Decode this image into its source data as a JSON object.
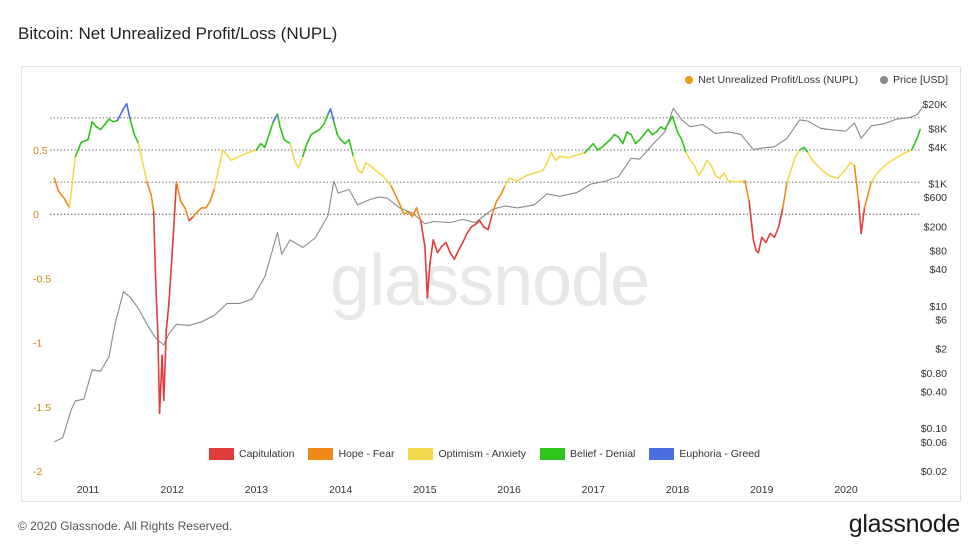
{
  "header": {
    "title": "Bitcoin: Net Unrealized Profit/Loss (NUPL)"
  },
  "footer": {
    "copyright": "© 2020 Glassnode. All Rights Reserved.",
    "logo_text": "glassnode"
  },
  "watermark": "glassnode",
  "legend_top": [
    {
      "label": "Net Unrealized Profit/Loss (NUPL)",
      "color": "#f09a1a"
    },
    {
      "label": "Price [USD]",
      "color": "#888888"
    }
  ],
  "legend_bottom": [
    {
      "label": "Capitulation",
      "color": "#e03c3c"
    },
    {
      "label": "Hope - Fear",
      "color": "#f08a1a"
    },
    {
      "label": "Optimism - Anxiety",
      "color": "#f2d94e"
    },
    {
      "label": "Belief - Denial",
      "color": "#2fc41c"
    },
    {
      "label": "Euphoria - Greed",
      "color": "#4a6ee0"
    }
  ],
  "chart_data": {
    "type": "line",
    "title": "Bitcoin: Net Unrealized Profit/Loss (NUPL)",
    "left_axis": {
      "ticks": [
        "0.5",
        "0",
        "-0.5",
        "-1",
        "-1.5",
        "-2"
      ],
      "values": [
        0.5,
        0,
        -0.5,
        -1,
        -1.5,
        -2
      ],
      "range": [
        -2,
        1
      ]
    },
    "right_axis": {
      "scale": "log",
      "ticks": [
        "$20K",
        "$8K",
        "$4K",
        "$1K",
        "$600",
        "$200",
        "$80",
        "$40",
        "$10",
        "$6",
        "$2",
        "$0.80",
        "$0.40",
        "$0.10",
        "$0.06",
        "$0.02"
      ],
      "values": [
        20000,
        8000,
        4000,
        1000,
        600,
        200,
        80,
        40,
        10,
        6,
        2,
        0.8,
        0.4,
        0.1,
        0.06,
        0.02
      ]
    },
    "x_axis": {
      "ticks": [
        "2011",
        "2012",
        "2013",
        "2014",
        "2015",
        "2016",
        "2017",
        "2018",
        "2019",
        "2020"
      ]
    },
    "zone_lines": [
      0.75,
      0.5,
      0.25,
      0
    ],
    "nupl": {
      "name": "Net Unrealized Profit/Loss (NUPL)",
      "points": [
        [
          2010.6,
          0.28
        ],
        [
          2010.65,
          0.18
        ],
        [
          2010.72,
          0.12
        ],
        [
          2010.78,
          0.05
        ],
        [
          2010.85,
          0.45
        ],
        [
          2010.92,
          0.56
        ],
        [
          2011.0,
          0.58
        ],
        [
          2011.05,
          0.72
        ],
        [
          2011.1,
          0.68
        ],
        [
          2011.15,
          0.66
        ],
        [
          2011.2,
          0.7
        ],
        [
          2011.25,
          0.74
        ],
        [
          2011.3,
          0.72
        ],
        [
          2011.35,
          0.73
        ],
        [
          2011.42,
          0.82
        ],
        [
          2011.46,
          0.86
        ],
        [
          2011.5,
          0.74
        ],
        [
          2011.55,
          0.62
        ],
        [
          2011.6,
          0.55
        ],
        [
          2011.65,
          0.4
        ],
        [
          2011.7,
          0.25
        ],
        [
          2011.75,
          0.15
        ],
        [
          2011.78,
          0.02
        ],
        [
          2011.8,
          -0.45
        ],
        [
          2011.83,
          -0.95
        ],
        [
          2011.85,
          -1.55
        ],
        [
          2011.88,
          -1.1
        ],
        [
          2011.9,
          -1.45
        ],
        [
          2011.93,
          -0.9
        ],
        [
          2011.96,
          -0.7
        ],
        [
          2012.0,
          -0.3
        ],
        [
          2012.05,
          0.25
        ],
        [
          2012.1,
          0.1
        ],
        [
          2012.15,
          0.05
        ],
        [
          2012.2,
          -0.05
        ],
        [
          2012.25,
          -0.02
        ],
        [
          2012.3,
          0.02
        ],
        [
          2012.35,
          0.05
        ],
        [
          2012.4,
          0.05
        ],
        [
          2012.45,
          0.1
        ],
        [
          2012.5,
          0.2
        ],
        [
          2012.55,
          0.35
        ],
        [
          2012.6,
          0.5
        ],
        [
          2012.7,
          0.42
        ],
        [
          2012.8,
          0.45
        ],
        [
          2012.9,
          0.48
        ],
        [
          2013.0,
          0.5
        ],
        [
          2013.05,
          0.55
        ],
        [
          2013.1,
          0.52
        ],
        [
          2013.15,
          0.62
        ],
        [
          2013.2,
          0.72
        ],
        [
          2013.25,
          0.78
        ],
        [
          2013.28,
          0.68
        ],
        [
          2013.33,
          0.58
        ],
        [
          2013.4,
          0.55
        ],
        [
          2013.45,
          0.42
        ],
        [
          2013.5,
          0.36
        ],
        [
          2013.55,
          0.45
        ],
        [
          2013.6,
          0.55
        ],
        [
          2013.65,
          0.62
        ],
        [
          2013.7,
          0.64
        ],
        [
          2013.75,
          0.66
        ],
        [
          2013.8,
          0.7
        ],
        [
          2013.85,
          0.78
        ],
        [
          2013.88,
          0.82
        ],
        [
          2013.92,
          0.72
        ],
        [
          2013.96,
          0.62
        ],
        [
          2014.0,
          0.58
        ],
        [
          2014.05,
          0.55
        ],
        [
          2014.1,
          0.58
        ],
        [
          2014.15,
          0.45
        ],
        [
          2014.2,
          0.35
        ],
        [
          2014.25,
          0.32
        ],
        [
          2014.3,
          0.4
        ],
        [
          2014.35,
          0.38
        ],
        [
          2014.4,
          0.35
        ],
        [
          2014.5,
          0.3
        ],
        [
          2014.6,
          0.22
        ],
        [
          2014.65,
          0.15
        ],
        [
          2014.7,
          0.08
        ],
        [
          2014.75,
          0.0
        ],
        [
          2014.8,
          0.02
        ],
        [
          2014.85,
          -0.02
        ],
        [
          2014.9,
          0.05
        ],
        [
          2014.95,
          -0.05
        ],
        [
          2015.0,
          -0.25
        ],
        [
          2015.03,
          -0.65
        ],
        [
          2015.06,
          -0.38
        ],
        [
          2015.1,
          -0.2
        ],
        [
          2015.15,
          -0.3
        ],
        [
          2015.2,
          -0.25
        ],
        [
          2015.25,
          -0.22
        ],
        [
          2015.3,
          -0.3
        ],
        [
          2015.35,
          -0.35
        ],
        [
          2015.4,
          -0.28
        ],
        [
          2015.45,
          -0.22
        ],
        [
          2015.5,
          -0.15
        ],
        [
          2015.55,
          -0.1
        ],
        [
          2015.6,
          -0.08
        ],
        [
          2015.65,
          -0.05
        ],
        [
          2015.7,
          -0.1
        ],
        [
          2015.75,
          -0.12
        ],
        [
          2015.8,
          0.0
        ],
        [
          2015.85,
          0.1
        ],
        [
          2015.9,
          0.15
        ],
        [
          2015.95,
          0.22
        ],
        [
          2016.0,
          0.28
        ],
        [
          2016.1,
          0.26
        ],
        [
          2016.2,
          0.3
        ],
        [
          2016.3,
          0.32
        ],
        [
          2016.4,
          0.34
        ],
        [
          2016.45,
          0.4
        ],
        [
          2016.5,
          0.48
        ],
        [
          2016.55,
          0.42
        ],
        [
          2016.6,
          0.45
        ],
        [
          2016.7,
          0.44
        ],
        [
          2016.8,
          0.46
        ],
        [
          2016.9,
          0.48
        ],
        [
          2017.0,
          0.55
        ],
        [
          2017.05,
          0.5
        ],
        [
          2017.1,
          0.52
        ],
        [
          2017.15,
          0.55
        ],
        [
          2017.2,
          0.58
        ],
        [
          2017.25,
          0.62
        ],
        [
          2017.3,
          0.6
        ],
        [
          2017.35,
          0.55
        ],
        [
          2017.4,
          0.64
        ],
        [
          2017.45,
          0.62
        ],
        [
          2017.5,
          0.55
        ],
        [
          2017.55,
          0.58
        ],
        [
          2017.6,
          0.62
        ],
        [
          2017.65,
          0.66
        ],
        [
          2017.7,
          0.62
        ],
        [
          2017.75,
          0.64
        ],
        [
          2017.8,
          0.68
        ],
        [
          2017.85,
          0.66
        ],
        [
          2017.9,
          0.72
        ],
        [
          2017.94,
          0.76
        ],
        [
          2017.97,
          0.7
        ],
        [
          2018.0,
          0.64
        ],
        [
          2018.05,
          0.58
        ],
        [
          2018.1,
          0.48
        ],
        [
          2018.15,
          0.42
        ],
        [
          2018.2,
          0.38
        ],
        [
          2018.25,
          0.3
        ],
        [
          2018.3,
          0.35
        ],
        [
          2018.35,
          0.42
        ],
        [
          2018.4,
          0.38
        ],
        [
          2018.45,
          0.3
        ],
        [
          2018.5,
          0.28
        ],
        [
          2018.55,
          0.32
        ],
        [
          2018.6,
          0.26
        ],
        [
          2018.7,
          0.25
        ],
        [
          2018.8,
          0.26
        ],
        [
          2018.85,
          0.1
        ],
        [
          2018.9,
          -0.2
        ],
        [
          2018.93,
          -0.28
        ],
        [
          2018.96,
          -0.3
        ],
        [
          2019.0,
          -0.18
        ],
        [
          2019.05,
          -0.22
        ],
        [
          2019.1,
          -0.15
        ],
        [
          2019.15,
          -0.18
        ],
        [
          2019.2,
          -0.1
        ],
        [
          2019.25,
          0.05
        ],
        [
          2019.3,
          0.25
        ],
        [
          2019.35,
          0.35
        ],
        [
          2019.4,
          0.45
        ],
        [
          2019.45,
          0.5
        ],
        [
          2019.5,
          0.52
        ],
        [
          2019.55,
          0.48
        ],
        [
          2019.6,
          0.42
        ],
        [
          2019.7,
          0.35
        ],
        [
          2019.8,
          0.3
        ],
        [
          2019.9,
          0.28
        ],
        [
          2020.0,
          0.35
        ],
        [
          2020.05,
          0.4
        ],
        [
          2020.1,
          0.38
        ],
        [
          2020.15,
          0.1
        ],
        [
          2020.18,
          -0.15
        ],
        [
          2020.22,
          0.05
        ],
        [
          2020.3,
          0.25
        ],
        [
          2020.35,
          0.3
        ],
        [
          2020.4,
          0.34
        ],
        [
          2020.5,
          0.4
        ],
        [
          2020.6,
          0.44
        ],
        [
          2020.7,
          0.48
        ],
        [
          2020.78,
          0.5
        ],
        [
          2020.85,
          0.6
        ],
        [
          2020.88,
          0.66
        ]
      ]
    },
    "price": {
      "name": "Price [USD]",
      "points": [
        [
          2010.6,
          0.06
        ],
        [
          2010.7,
          0.07
        ],
        [
          2010.8,
          0.2
        ],
        [
          2010.85,
          0.28
        ],
        [
          2010.95,
          0.3
        ],
        [
          2011.05,
          0.9
        ],
        [
          2011.15,
          0.86
        ],
        [
          2011.25,
          1.5
        ],
        [
          2011.32,
          5
        ],
        [
          2011.42,
          17
        ],
        [
          2011.5,
          14
        ],
        [
          2011.6,
          9
        ],
        [
          2011.7,
          5
        ],
        [
          2011.8,
          3
        ],
        [
          2011.9,
          2.3
        ],
        [
          2011.96,
          3.5
        ],
        [
          2012.05,
          5
        ],
        [
          2012.2,
          4.8
        ],
        [
          2012.35,
          5.5
        ],
        [
          2012.5,
          7
        ],
        [
          2012.65,
          11
        ],
        [
          2012.8,
          11
        ],
        [
          2012.95,
          13
        ],
        [
          2013.1,
          30
        ],
        [
          2013.25,
          160
        ],
        [
          2013.3,
          70
        ],
        [
          2013.4,
          120
        ],
        [
          2013.55,
          90
        ],
        [
          2013.7,
          130
        ],
        [
          2013.85,
          300
        ],
        [
          2013.92,
          1100
        ],
        [
          2013.97,
          700
        ],
        [
          2014.1,
          800
        ],
        [
          2014.2,
          450
        ],
        [
          2014.35,
          550
        ],
        [
          2014.45,
          600
        ],
        [
          2014.55,
          580
        ],
        [
          2014.7,
          400
        ],
        [
          2014.85,
          330
        ],
        [
          2015.0,
          220
        ],
        [
          2015.1,
          240
        ],
        [
          2015.3,
          230
        ],
        [
          2015.45,
          260
        ],
        [
          2015.6,
          230
        ],
        [
          2015.8,
          380
        ],
        [
          2015.95,
          430
        ],
        [
          2016.1,
          400
        ],
        [
          2016.3,
          450
        ],
        [
          2016.45,
          680
        ],
        [
          2016.6,
          620
        ],
        [
          2016.8,
          710
        ],
        [
          2016.97,
          980
        ],
        [
          2017.15,
          1100
        ],
        [
          2017.3,
          1300
        ],
        [
          2017.45,
          2600
        ],
        [
          2017.55,
          2500
        ],
        [
          2017.7,
          4300
        ],
        [
          2017.85,
          7000
        ],
        [
          2017.95,
          17000
        ],
        [
          2018.05,
          11000
        ],
        [
          2018.15,
          8500
        ],
        [
          2018.3,
          9200
        ],
        [
          2018.45,
          6600
        ],
        [
          2018.6,
          7000
        ],
        [
          2018.75,
          6400
        ],
        [
          2018.9,
          3600
        ],
        [
          2019.0,
          3800
        ],
        [
          2019.15,
          4000
        ],
        [
          2019.3,
          5500
        ],
        [
          2019.45,
          11000
        ],
        [
          2019.55,
          10500
        ],
        [
          2019.7,
          8000
        ],
        [
          2019.85,
          7500
        ],
        [
          2020.0,
          7200
        ],
        [
          2020.1,
          9800
        ],
        [
          2020.18,
          5500
        ],
        [
          2020.3,
          8800
        ],
        [
          2020.45,
          9500
        ],
        [
          2020.6,
          11300
        ],
        [
          2020.75,
          12000
        ],
        [
          2020.85,
          13500
        ],
        [
          2020.92,
          19000
        ]
      ]
    },
    "zones": [
      {
        "name": "Capitulation",
        "below": 0,
        "color": "#e03c3c"
      },
      {
        "name": "Hope - Fear",
        "below": 0.25,
        "color": "#f08a1a"
      },
      {
        "name": "Optimism - Anxiety",
        "below": 0.5,
        "color": "#f2d94e"
      },
      {
        "name": "Belief - Denial",
        "below": 0.75,
        "color": "#2fc41c"
      },
      {
        "name": "Euphoria - Greed",
        "below": 99,
        "color": "#4a6ee0"
      }
    ]
  }
}
